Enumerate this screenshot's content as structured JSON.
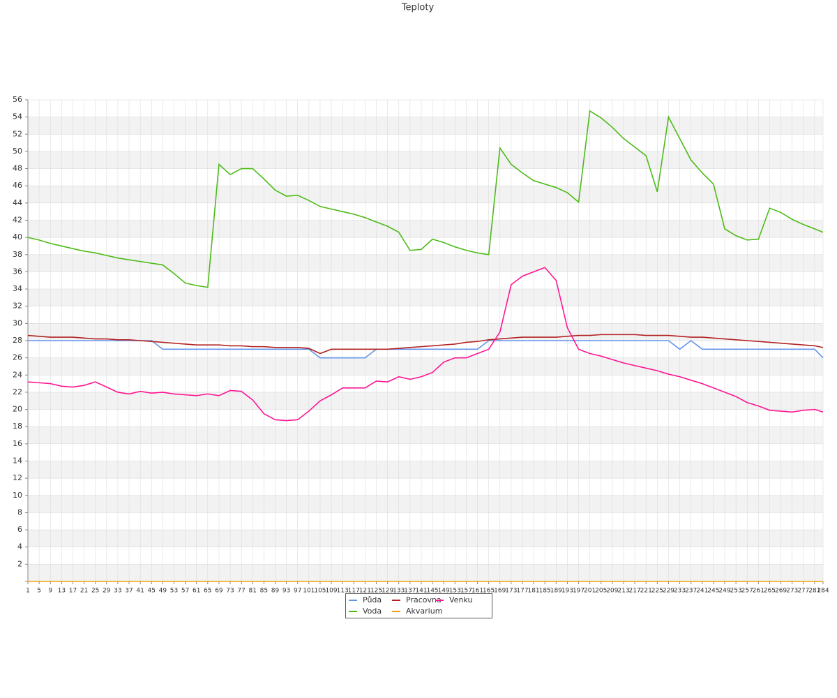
{
  "chart_data": {
    "type": "line",
    "title": "Teploty",
    "x": [
      1,
      5,
      9,
      13,
      17,
      21,
      25,
      29,
      33,
      37,
      41,
      45,
      49,
      53,
      57,
      61,
      65,
      69,
      73,
      77,
      81,
      85,
      89,
      93,
      97,
      101,
      105,
      109,
      113,
      117,
      121,
      125,
      129,
      133,
      137,
      141,
      145,
      149,
      153,
      157,
      161,
      165,
      169,
      173,
      177,
      181,
      185,
      189,
      193,
      197,
      201,
      205,
      209,
      213,
      217,
      221,
      225,
      229,
      233,
      237,
      241,
      245,
      249,
      253,
      257,
      261,
      265,
      269,
      273,
      277,
      281,
      284
    ],
    "xlim": [
      1,
      284
    ],
    "ylim": [
      0,
      56
    ],
    "yticks": [
      2,
      4,
      6,
      8,
      10,
      12,
      14,
      16,
      18,
      20,
      22,
      24,
      26,
      28,
      30,
      32,
      34,
      36,
      38,
      40,
      42,
      44,
      46,
      48,
      50,
      52,
      54,
      56
    ],
    "grid": true,
    "legend": "bottom",
    "series": [
      {
        "name": "Půda",
        "color": "#6495ed",
        "values": [
          28,
          28,
          28,
          28,
          28,
          28,
          28,
          28,
          28,
          28,
          28,
          28,
          27,
          27,
          27,
          27,
          27,
          27,
          27,
          27,
          27,
          27,
          27,
          27,
          27,
          27,
          26,
          26,
          26,
          26,
          26,
          27,
          27,
          27,
          27,
          27,
          27,
          27,
          27,
          27,
          27,
          28,
          28,
          28,
          28,
          28,
          28,
          28,
          28,
          28,
          28,
          28,
          28,
          28,
          28,
          28,
          28,
          28,
          27,
          28,
          27,
          27,
          27,
          27,
          27,
          27,
          27,
          27,
          27,
          27,
          27,
          26
        ]
      },
      {
        "name": "Pracovna",
        "color": "#b22222",
        "values": [
          28.6,
          28.5,
          28.4,
          28.4,
          28.4,
          28.3,
          28.2,
          28.2,
          28.1,
          28.1,
          28,
          27.9,
          27.8,
          27.7,
          27.6,
          27.5,
          27.5,
          27.5,
          27.4,
          27.4,
          27.3,
          27.3,
          27.2,
          27.2,
          27.2,
          27.1,
          26.5,
          27,
          27,
          27,
          27,
          27,
          27,
          27.1,
          27.2,
          27.3,
          27.4,
          27.5,
          27.6,
          27.8,
          27.9,
          28.1,
          28.2,
          28.3,
          28.4,
          28.4,
          28.4,
          28.4,
          28.5,
          28.6,
          28.6,
          28.7,
          28.7,
          28.7,
          28.7,
          28.6,
          28.6,
          28.6,
          28.5,
          28.4,
          28.4,
          28.3,
          28.2,
          28.1,
          28,
          27.9,
          27.8,
          27.7,
          27.6,
          27.5,
          27.4,
          27.2
        ]
      },
      {
        "name": "Venku",
        "color": "#ff1493",
        "values": [
          23.2,
          23.1,
          23,
          22.7,
          22.6,
          22.8,
          23.2,
          22.6,
          22,
          21.8,
          22.1,
          21.9,
          22,
          21.8,
          21.7,
          21.6,
          21.8,
          21.6,
          22.2,
          22.1,
          21.1,
          19.5,
          18.8,
          18.7,
          18.8,
          19.8,
          21,
          21.7,
          22.5,
          22.5,
          22.5,
          23.3,
          23.2,
          23.8,
          23.5,
          23.8,
          24.3,
          25.5,
          26,
          26,
          26.5,
          27,
          29,
          34.5,
          35.5,
          36,
          36.5,
          35,
          29.5,
          27,
          26.5,
          26.2,
          25.8,
          25.4,
          25.1,
          24.8,
          24.5,
          24.1,
          23.8,
          23.4,
          23,
          22.5,
          22,
          21.5,
          20.8,
          20.4,
          19.9,
          19.8,
          19.7,
          19.9,
          20,
          19.7
        ]
      },
      {
        "name": "Voda",
        "color": "#4cbb17",
        "values": [
          40,
          39.7,
          39.3,
          39,
          38.7,
          38.4,
          38.2,
          37.9,
          37.6,
          37.4,
          37.2,
          37,
          36.8,
          35.8,
          34.7,
          34.4,
          34.2,
          48.5,
          47.3,
          48,
          48,
          46.8,
          45.5,
          44.8,
          44.9,
          44.3,
          43.6,
          43.3,
          43,
          42.7,
          42.3,
          41.8,
          41.3,
          40.6,
          38.5,
          38.6,
          39.8,
          39.4,
          38.9,
          38.5,
          38.2,
          38,
          50.4,
          48.5,
          47.5,
          46.6,
          46.2,
          45.8,
          45.2,
          44.1,
          54.7,
          53.9,
          52.8,
          51.5,
          50.5,
          49.5,
          45.3,
          54,
          51.5,
          49,
          47.5,
          46.2,
          41,
          40.2,
          39.7,
          39.8,
          43.4,
          42.9,
          42.1,
          41.5,
          41,
          40.6
        ]
      },
      {
        "name": "Akvarium",
        "color": "#f0a30a",
        "values": [
          0,
          0,
          0,
          0,
          0,
          0,
          0,
          0,
          0,
          0,
          0,
          0,
          0,
          0,
          0,
          0,
          0,
          0,
          0,
          0,
          0,
          0,
          0,
          0,
          0,
          0,
          0,
          0,
          0,
          0,
          0,
          0,
          0,
          0,
          0,
          0,
          0,
          0,
          0,
          0,
          0,
          0,
          0,
          0,
          0,
          0,
          0,
          0,
          0,
          0,
          0,
          0,
          0,
          0,
          0,
          0,
          0,
          0,
          0,
          0,
          0,
          0,
          0,
          0,
          0,
          0,
          0,
          0,
          0,
          0,
          0,
          0
        ]
      }
    ]
  }
}
